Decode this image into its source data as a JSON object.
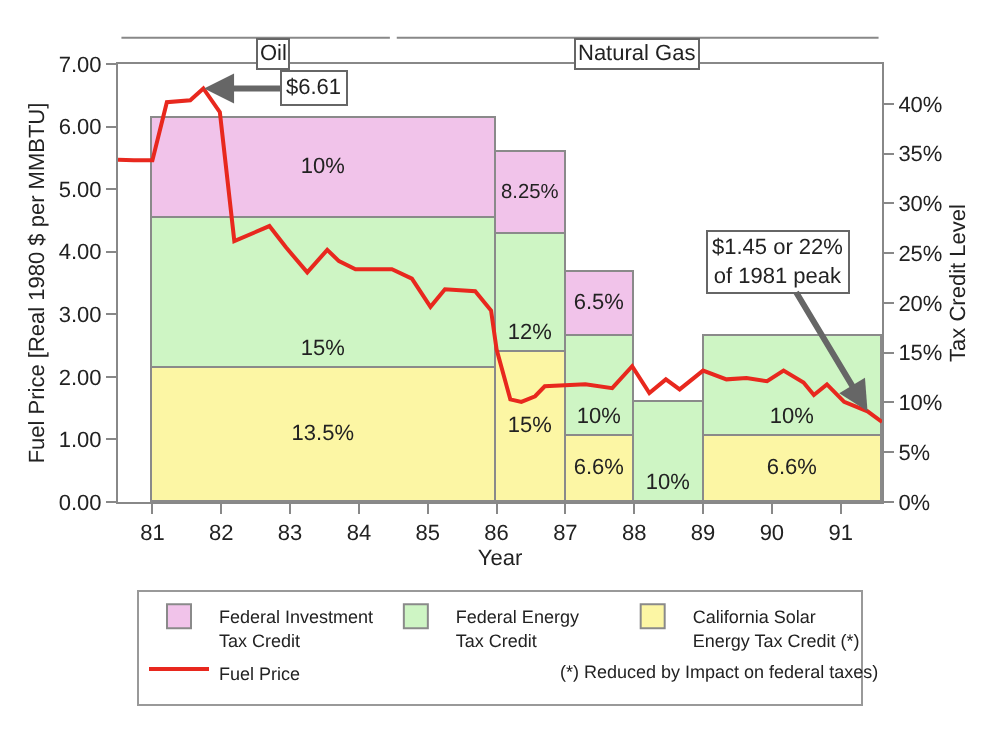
{
  "chart_data": {
    "type": "bar",
    "stacked": true,
    "xlabel": "Year",
    "ylabel": "Fuel Price [Real 1980 $ per MMBTU]",
    "y2label": "Tax Credit Level",
    "x": [
      83.5,
      86.5,
      87.5,
      88.5,
      90.3
    ],
    "series": [
      {
        "name": "California Solar\nEnergy Tax Credit (*)",
        "color": "#fcf6a4",
        "axis": "y2",
        "values": [
          13.5,
          15,
          6.6,
          null,
          6.6
        ],
        "value_labels": [
          "13.5%",
          "15%",
          "6.6%",
          null,
          "6.6%"
        ]
      },
      {
        "name": "Federal Energy\nTax Credit",
        "color": "#cef5c4",
        "axis": "y2",
        "values": [
          15,
          12,
          10,
          10,
          10
        ],
        "value_labels": [
          "15%",
          "12%",
          "10%",
          "10%",
          "10%"
        ]
      },
      {
        "name": "Federal Investment\nTax Credit",
        "color": "#f1c3ea",
        "axis": "y2",
        "values": [
          10,
          8.25,
          6.5,
          null,
          null
        ],
        "value_labels": [
          "10%",
          "8.25%",
          "6.5%",
          null,
          null
        ]
      },
      {
        "name": "Fuel Price",
        "type": "line",
        "color": "#e8281e",
        "x": [
          80.5,
          80.73,
          81.0,
          81.21,
          81.55,
          81.74,
          81.98,
          82.19,
          82.7,
          82.94,
          83.25,
          83.54,
          83.71,
          83.95,
          84.48,
          84.77,
          85.04,
          85.25,
          85.69,
          85.92,
          86.0,
          86.2,
          86.36,
          86.56,
          86.7,
          87.29,
          87.68,
          87.97,
          88.22,
          88.46,
          88.66,
          89.0,
          89.34,
          89.63,
          89.93,
          90.17,
          90.46,
          90.61,
          90.8,
          91.05,
          91.39,
          91.6
        ],
        "values": [
          5.47,
          5.46,
          5.46,
          6.39,
          6.42,
          6.61,
          6.23,
          4.17,
          4.41,
          4.07,
          3.67,
          4.03,
          3.85,
          3.72,
          3.72,
          3.57,
          3.12,
          3.4,
          3.37,
          3.06,
          2.44,
          1.64,
          1.6,
          1.69,
          1.85,
          1.88,
          1.82,
          2.17,
          1.74,
          1.96,
          1.8,
          2.1,
          1.96,
          1.98,
          1.93,
          2.1,
          1.91,
          1.71,
          1.88,
          1.6,
          1.45,
          1.28
        ]
      }
    ],
    "xlim": [
      80.5,
      91.6
    ],
    "xticks": [
      81,
      82,
      83,
      84,
      85,
      86,
      87,
      88,
      89,
      90,
      91
    ],
    "ylim": [
      0,
      7
    ],
    "yticks": [
      {
        "value": 0,
        "label": "0.00"
      },
      {
        "value": 1,
        "label": "1.00"
      },
      {
        "value": 2,
        "label": "2.00"
      },
      {
        "value": 3,
        "label": "3.00"
      },
      {
        "value": 4,
        "label": "4.00"
      },
      {
        "value": 5,
        "label": "5.00"
      },
      {
        "value": 6,
        "label": "6.00"
      },
      {
        "value": 7,
        "label": "7.00"
      }
    ],
    "y2lim": [
      0,
      44
    ],
    "y2ticks": [
      {
        "value": 0,
        "label": "0%"
      },
      {
        "value": 5,
        "label": "5%"
      },
      {
        "value": 10,
        "label": "10%"
      },
      {
        "value": 15,
        "label": "15%"
      },
      {
        "value": 20,
        "label": "20%"
      },
      {
        "value": 25,
        "label": "25%"
      },
      {
        "value": 30,
        "label": "30%"
      },
      {
        "value": 35,
        "label": "35%"
      },
      {
        "value": 40,
        "label": "40%"
      }
    ],
    "annotations": [
      {
        "text": "$6.61",
        "x": 81.75,
        "y": 6.61
      },
      {
        "text": "$1.45 or 22%\nof 1981 peak",
        "x": 91.39,
        "y": 1.45
      },
      "Oil",
      "Natural Gas",
      "(*) Reduced by Impact on federal taxes)"
    ],
    "legend": "bottom"
  }
}
